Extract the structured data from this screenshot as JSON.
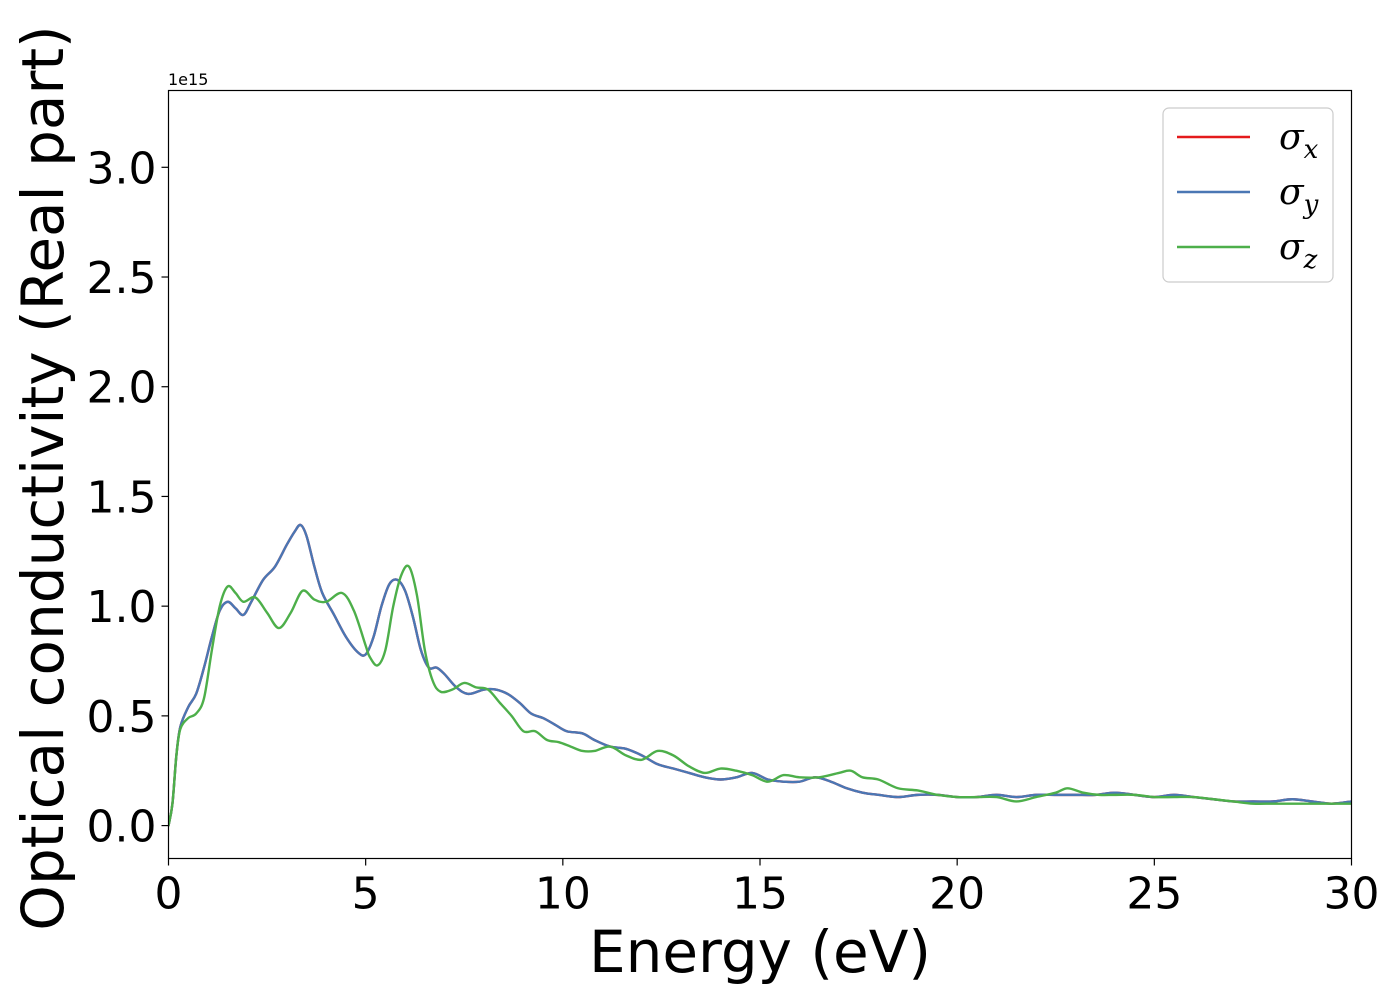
{
  "chart_data": {
    "type": "line",
    "title": "",
    "xlabel": "Energy (eV)",
    "ylabel": "Optical conductivity (Real part)",
    "y_offset_text": "1e15",
    "y_scale_factor": 1000000000000000.0,
    "xlim": [
      0,
      30
    ],
    "ylim": [
      -0.15,
      3.35
    ],
    "xticks": [
      0,
      5,
      10,
      15,
      20,
      25,
      30
    ],
    "xtick_labels": [
      "0",
      "5",
      "10",
      "15",
      "20",
      "25",
      "30"
    ],
    "yticks": [
      0.0,
      0.5,
      1.0,
      1.5,
      2.0,
      2.5,
      3.0
    ],
    "ytick_labels": [
      "0.0",
      "0.5",
      "1.0",
      "1.5",
      "2.0",
      "2.5",
      "3.0"
    ],
    "grid": false,
    "legend_position": "top-right",
    "series": [
      {
        "name": "σx",
        "legend_symbol": "σ",
        "legend_subscript": "x",
        "color": "#e41a1c",
        "x": [
          0,
          0.1,
          0.2,
          0.3,
          0.5,
          0.7,
          0.9,
          1.1,
          1.3,
          1.5,
          1.7,
          1.9,
          2.1,
          2.4,
          2.7,
          3.0,
          3.2,
          3.35,
          3.5,
          3.7,
          3.9,
          4.2,
          4.5,
          4.8,
          5.0,
          5.2,
          5.4,
          5.6,
          5.8,
          6.0,
          6.2,
          6.4,
          6.6,
          6.8,
          7.0,
          7.3,
          7.6,
          8.0,
          8.3,
          8.6,
          8.9,
          9.2,
          9.5,
          9.8,
          10.1,
          10.5,
          10.8,
          11.2,
          11.6,
          12.0,
          12.4,
          12.8,
          13.2,
          13.6,
          14.0,
          14.4,
          14.8,
          15.2,
          15.6,
          16.0,
          16.4,
          16.8,
          17.2,
          17.6,
          18.0,
          18.5,
          19.0,
          19.5,
          20.0,
          20.5,
          21.0,
          21.5,
          22.0,
          22.5,
          23.0,
          23.5,
          24.0,
          24.5,
          25.0,
          25.5,
          26.0,
          26.5,
          27.0,
          27.5,
          28.0,
          28.5,
          29.0,
          29.5,
          30.0
        ],
        "y": [
          0.0,
          0.1,
          0.32,
          0.45,
          0.54,
          0.6,
          0.72,
          0.86,
          0.98,
          1.02,
          0.99,
          0.96,
          1.02,
          1.12,
          1.18,
          1.28,
          1.34,
          1.37,
          1.32,
          1.18,
          1.06,
          0.96,
          0.86,
          0.79,
          0.78,
          0.86,
          1.0,
          1.1,
          1.12,
          1.07,
          0.95,
          0.8,
          0.72,
          0.72,
          0.69,
          0.63,
          0.6,
          0.62,
          0.62,
          0.6,
          0.56,
          0.51,
          0.49,
          0.46,
          0.43,
          0.42,
          0.39,
          0.36,
          0.35,
          0.32,
          0.28,
          0.26,
          0.24,
          0.22,
          0.21,
          0.22,
          0.24,
          0.21,
          0.2,
          0.2,
          0.22,
          0.2,
          0.17,
          0.15,
          0.14,
          0.13,
          0.14,
          0.14,
          0.13,
          0.13,
          0.14,
          0.13,
          0.14,
          0.14,
          0.14,
          0.14,
          0.15,
          0.14,
          0.13,
          0.14,
          0.13,
          0.12,
          0.11,
          0.11,
          0.11,
          0.12,
          0.11,
          0.1,
          0.11
        ]
      },
      {
        "name": "σy",
        "legend_symbol": "σ",
        "legend_subscript": "y",
        "color": "#4a77b4",
        "x": [
          0,
          0.1,
          0.2,
          0.3,
          0.5,
          0.7,
          0.9,
          1.1,
          1.3,
          1.5,
          1.7,
          1.9,
          2.1,
          2.4,
          2.7,
          3.0,
          3.2,
          3.35,
          3.5,
          3.7,
          3.9,
          4.2,
          4.5,
          4.8,
          5.0,
          5.2,
          5.4,
          5.6,
          5.8,
          6.0,
          6.2,
          6.4,
          6.6,
          6.8,
          7.0,
          7.3,
          7.6,
          8.0,
          8.3,
          8.6,
          8.9,
          9.2,
          9.5,
          9.8,
          10.1,
          10.5,
          10.8,
          11.2,
          11.6,
          12.0,
          12.4,
          12.8,
          13.2,
          13.6,
          14.0,
          14.4,
          14.8,
          15.2,
          15.6,
          16.0,
          16.4,
          16.8,
          17.2,
          17.6,
          18.0,
          18.5,
          19.0,
          19.5,
          20.0,
          20.5,
          21.0,
          21.5,
          22.0,
          22.5,
          23.0,
          23.5,
          24.0,
          24.5,
          25.0,
          25.5,
          26.0,
          26.5,
          27.0,
          27.5,
          28.0,
          28.5,
          29.0,
          29.5,
          30.0
        ],
        "y": [
          0.0,
          0.1,
          0.32,
          0.45,
          0.54,
          0.6,
          0.72,
          0.86,
          0.98,
          1.02,
          0.99,
          0.96,
          1.02,
          1.12,
          1.18,
          1.28,
          1.34,
          1.37,
          1.32,
          1.18,
          1.06,
          0.96,
          0.86,
          0.79,
          0.78,
          0.86,
          1.0,
          1.1,
          1.12,
          1.07,
          0.95,
          0.8,
          0.72,
          0.72,
          0.69,
          0.63,
          0.6,
          0.62,
          0.62,
          0.6,
          0.56,
          0.51,
          0.49,
          0.46,
          0.43,
          0.42,
          0.39,
          0.36,
          0.35,
          0.32,
          0.28,
          0.26,
          0.24,
          0.22,
          0.21,
          0.22,
          0.24,
          0.21,
          0.2,
          0.2,
          0.22,
          0.2,
          0.17,
          0.15,
          0.14,
          0.13,
          0.14,
          0.14,
          0.13,
          0.13,
          0.14,
          0.13,
          0.14,
          0.14,
          0.14,
          0.14,
          0.15,
          0.14,
          0.13,
          0.14,
          0.13,
          0.12,
          0.11,
          0.11,
          0.11,
          0.12,
          0.11,
          0.1,
          0.11
        ]
      },
      {
        "name": "σz",
        "legend_symbol": "σ",
        "legend_subscript": "z",
        "color": "#4daf4a",
        "x": [
          0,
          0.1,
          0.2,
          0.3,
          0.5,
          0.7,
          0.9,
          1.1,
          1.3,
          1.5,
          1.7,
          1.9,
          2.2,
          2.5,
          2.8,
          3.1,
          3.4,
          3.7,
          4.0,
          4.4,
          4.7,
          5.0,
          5.1,
          5.3,
          5.5,
          5.7,
          5.9,
          6.1,
          6.3,
          6.5,
          6.7,
          6.9,
          7.2,
          7.5,
          7.8,
          8.1,
          8.4,
          8.7,
          9.0,
          9.3,
          9.6,
          9.9,
          10.2,
          10.5,
          10.8,
          11.2,
          11.6,
          12.0,
          12.4,
          12.8,
          13.2,
          13.6,
          14.0,
          14.4,
          14.8,
          15.2,
          15.6,
          16.0,
          16.5,
          17.0,
          17.3,
          17.6,
          18.0,
          18.5,
          19.0,
          19.5,
          20.0,
          20.5,
          21.0,
          21.5,
          22.0,
          22.5,
          22.8,
          23.2,
          23.6,
          24.0,
          24.5,
          25.0,
          25.5,
          26.0,
          26.5,
          27.0,
          27.5,
          28.0,
          28.5,
          29.0,
          29.5,
          30.0
        ],
        "y": [
          0.0,
          0.1,
          0.32,
          0.44,
          0.49,
          0.51,
          0.58,
          0.8,
          1.0,
          1.09,
          1.06,
          1.02,
          1.04,
          0.97,
          0.9,
          0.97,
          1.07,
          1.03,
          1.02,
          1.06,
          0.98,
          0.82,
          0.77,
          0.73,
          0.8,
          1.0,
          1.14,
          1.18,
          1.05,
          0.8,
          0.66,
          0.61,
          0.62,
          0.65,
          0.63,
          0.62,
          0.56,
          0.5,
          0.43,
          0.43,
          0.39,
          0.38,
          0.36,
          0.34,
          0.34,
          0.36,
          0.32,
          0.3,
          0.34,
          0.32,
          0.27,
          0.24,
          0.26,
          0.25,
          0.23,
          0.2,
          0.23,
          0.22,
          0.22,
          0.24,
          0.25,
          0.22,
          0.21,
          0.17,
          0.16,
          0.14,
          0.13,
          0.13,
          0.13,
          0.11,
          0.13,
          0.15,
          0.17,
          0.15,
          0.14,
          0.14,
          0.14,
          0.13,
          0.13,
          0.13,
          0.12,
          0.11,
          0.1,
          0.1,
          0.1,
          0.1,
          0.1,
          0.1
        ]
      }
    ]
  }
}
